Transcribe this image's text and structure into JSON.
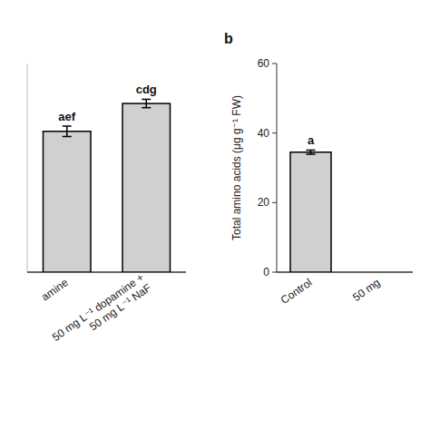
{
  "chart_data": [
    {
      "type": "bar",
      "categories": [
        "amine",
        "50 mg L⁻¹ dopamine +\n50 mg L⁻¹ NaF"
      ],
      "values": [
        40.5,
        48.5
      ],
      "errors": [
        1.5,
        1.2
      ],
      "annotations": [
        "aef",
        "cdg"
      ],
      "color": "#d0d0d0",
      "ylim": [
        0,
        60
      ],
      "tick_labels": "x"
    },
    {
      "type": "bar",
      "title": "b",
      "categories": [
        "Control",
        "50 mg"
      ],
      "values": [
        34.5,
        null
      ],
      "errors": [
        0.6,
        null
      ],
      "annotations": [
        "a",
        null
      ],
      "color": "#d0d0d0",
      "ylabel": "Total amino acids (μg g⁻¹ FW)",
      "ylim": [
        0,
        60
      ],
      "yticks": [
        0,
        20,
        40,
        60
      ]
    }
  ]
}
